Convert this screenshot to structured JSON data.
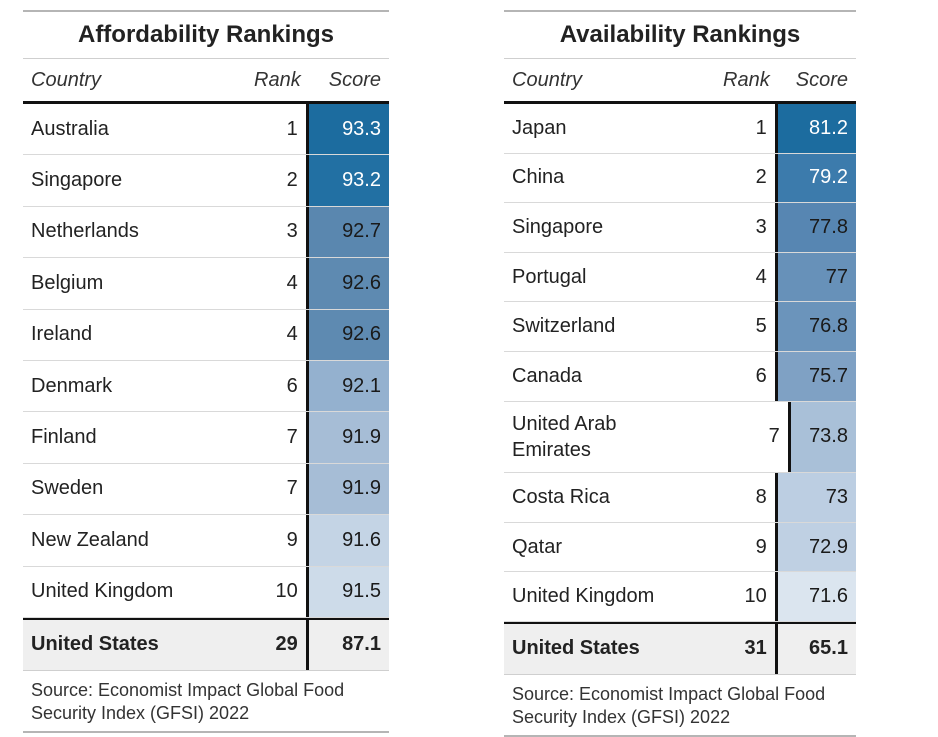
{
  "affordability": {
    "title": "Affordability Rankings",
    "headers": {
      "country": "Country",
      "rank": "Rank",
      "score": "Score"
    },
    "rows": [
      {
        "country": "Australia",
        "rank": "1",
        "score": "93.3",
        "color": "#1c6c9f",
        "text_color": "#ffffff"
      },
      {
        "country": "Singapore",
        "rank": "2",
        "score": "93.2",
        "color": "#2270a3",
        "text_color": "#ffffff"
      },
      {
        "country": "Netherlands",
        "rank": "3",
        "score": "92.7",
        "color": "#5a87af",
        "text_color": "#1a1a1a"
      },
      {
        "country": "Belgium",
        "rank": "4",
        "score": "92.6",
        "color": "#5e8ab1",
        "text_color": "#1a1a1a"
      },
      {
        "country": "Ireland",
        "rank": "4",
        "score": "92.6",
        "color": "#5e8ab1",
        "text_color": "#1a1a1a"
      },
      {
        "country": "Denmark",
        "rank": "6",
        "score": "92.1",
        "color": "#94b1cf",
        "text_color": "#1a1a1a"
      },
      {
        "country": "Finland",
        "rank": "7",
        "score": "91.9",
        "color": "#a6bdd6",
        "text_color": "#1a1a1a"
      },
      {
        "country": "Sweden",
        "rank": "7",
        "score": "91.9",
        "color": "#a6bdd6",
        "text_color": "#1a1a1a"
      },
      {
        "country": "New Zealand",
        "rank": "9",
        "score": "91.6",
        "color": "#c4d4e5",
        "text_color": "#1a1a1a"
      },
      {
        "country": "United Kingdom",
        "rank": "10",
        "score": "91.5",
        "color": "#cddbe9",
        "text_color": "#1a1a1a"
      }
    ],
    "us": {
      "country": "United States",
      "rank": "29",
      "score": "87.1"
    },
    "source": "Source: Economist Impact Global Food Security Index (GFSI) 2022"
  },
  "availability": {
    "title": "Availability Rankings",
    "headers": {
      "country": "Country",
      "rank": "Rank",
      "score": "Score"
    },
    "rows": [
      {
        "country": "Japan",
        "rank": "1",
        "score": "81.2",
        "color": "#1c6c9f",
        "text_color": "#ffffff"
      },
      {
        "country": "China",
        "rank": "2",
        "score": "79.2",
        "color": "#3c7bac",
        "text_color": "#ffffff"
      },
      {
        "country": "Singapore",
        "rank": "3",
        "score": "77.8",
        "color": "#5786b2",
        "text_color": "#1a1a1a"
      },
      {
        "country": "Portugal",
        "rank": "4",
        "score": "77",
        "color": "#6791b9",
        "text_color": "#1a1a1a"
      },
      {
        "country": "Switzerland",
        "rank": "5",
        "score": "76.8",
        "color": "#6b94bb",
        "text_color": "#1a1a1a"
      },
      {
        "country": "Canada",
        "rank": "6",
        "score": "75.7",
        "color": "#7fa1c4",
        "text_color": "#1a1a1a"
      },
      {
        "country": "United Arab Emirates",
        "rank": "7",
        "score": "73.8",
        "color": "#a9c0d8",
        "text_color": "#1a1a1a"
      },
      {
        "country": "Costa Rica",
        "rank": "8",
        "score": "73",
        "color": "#bccee2",
        "text_color": "#1a1a1a"
      },
      {
        "country": "Qatar",
        "rank": "9",
        "score": "72.9",
        "color": "#bfd0e3",
        "text_color": "#1a1a1a"
      },
      {
        "country": "United Kingdom",
        "rank": "10",
        "score": "71.6",
        "color": "#dbe5ef",
        "text_color": "#1a1a1a"
      }
    ],
    "us": {
      "country": "United States",
      "rank": "31",
      "score": "65.1"
    },
    "source": "Source: Economist Impact Global Food Security Index (GFSI) 2022"
  }
}
